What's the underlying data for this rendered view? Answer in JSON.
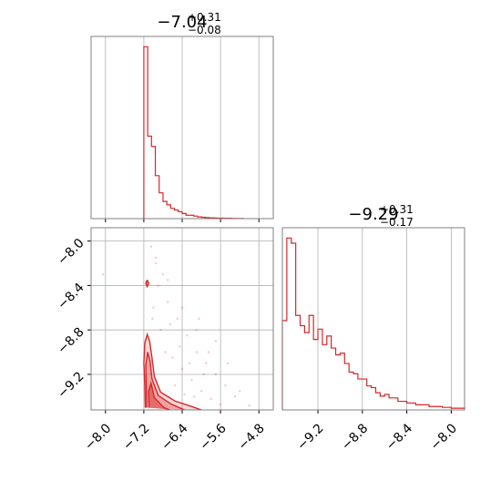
{
  "colors": {
    "series": "#d62728",
    "grid": "#b0b0b0",
    "frame": "#808080"
  },
  "chart_data": [
    {
      "type": "histogram",
      "panel": "top-left",
      "title": {
        "main": "−7.04",
        "sup": "+0.31",
        "sub": "−0.08"
      },
      "xlim": [
        -8.3,
        -4.5
      ],
      "xticks": [
        -8.0,
        -7.2,
        -6.4,
        -5.6,
        -4.8
      ],
      "bin_edges": [
        -7.2,
        -7.12,
        -7.04,
        -6.96,
        -6.88,
        -6.8,
        -6.72,
        -6.64,
        -6.56,
        -6.48,
        -6.4,
        -6.32,
        -6.24,
        -6.16,
        -6.08,
        -6.0,
        -5.92,
        -5.84,
        -5.76,
        -5.68,
        -5.6,
        -5.52,
        -5.44,
        -5.36,
        -5.28,
        -5.2,
        -5.12
      ],
      "counts": [
        1.0,
        0.48,
        0.42,
        0.25,
        0.15,
        0.1,
        0.08,
        0.06,
        0.05,
        0.04,
        0.03,
        0.02,
        0.02,
        0.015,
        0.01,
        0.008,
        0.006,
        0.005,
        0.004,
        0.003,
        0.003,
        0.002,
        0.002,
        0.001,
        0.001,
        0.001
      ]
    },
    {
      "type": "scatter-contour",
      "panel": "bottom-left",
      "xlim": [
        -8.3,
        -4.5
      ],
      "ylim": [
        -9.52,
        -7.88
      ],
      "xticks": [
        -8.0,
        -7.2,
        -6.4,
        -5.6,
        -4.8
      ],
      "yticks": [
        -8.0,
        -8.4,
        -8.8,
        -9.2
      ],
      "contours": [
        [
          [
            -7.17,
            -9.5
          ],
          [
            -7.18,
            -9.3
          ],
          [
            -7.2,
            -9.1
          ],
          [
            -7.18,
            -8.92
          ],
          [
            -7.13,
            -8.84
          ],
          [
            -7.08,
            -8.9
          ],
          [
            -7.03,
            -9.05
          ],
          [
            -6.98,
            -9.22
          ],
          [
            -6.85,
            -9.36
          ],
          [
            -6.55,
            -9.44
          ],
          [
            -6.2,
            -9.49
          ],
          [
            -6.0,
            -9.52
          ]
        ],
        [
          [
            -7.14,
            -9.5
          ],
          [
            -7.15,
            -9.3
          ],
          [
            -7.16,
            -9.12
          ],
          [
            -7.12,
            -9.0
          ],
          [
            -7.07,
            -9.08
          ],
          [
            -7.03,
            -9.24
          ],
          [
            -6.9,
            -9.39
          ],
          [
            -6.62,
            -9.47
          ],
          [
            -6.35,
            -9.52
          ]
        ],
        [
          [
            -7.09,
            -9.5
          ],
          [
            -7.1,
            -9.35
          ],
          [
            -7.05,
            -9.28
          ],
          [
            -6.98,
            -9.41
          ],
          [
            -6.78,
            -9.5
          ],
          [
            -6.65,
            -9.52
          ]
        ],
        [
          [
            -7.13,
            -8.35
          ],
          [
            -7.1,
            -8.38
          ],
          [
            -7.13,
            -8.41
          ],
          [
            -7.16,
            -8.38
          ],
          [
            -7.13,
            -8.35
          ]
        ]
      ],
      "scatter_points": [
        [
          -7.05,
          -8.05
        ],
        [
          -6.95,
          -8.15
        ],
        [
          -6.8,
          -8.3
        ],
        [
          -6.7,
          -8.55
        ],
        [
          -6.5,
          -8.7
        ],
        [
          -6.3,
          -8.85
        ],
        [
          -6.1,
          -9.0
        ],
        [
          -5.9,
          -9.1
        ],
        [
          -5.7,
          -9.2
        ],
        [
          -5.5,
          -9.3
        ],
        [
          -5.3,
          -9.4
        ],
        [
          -6.9,
          -8.4
        ],
        [
          -6.6,
          -9.05
        ],
        [
          -6.4,
          -9.15
        ],
        [
          -6.2,
          -9.25
        ],
        [
          -6.0,
          -9.35
        ],
        [
          -5.8,
          -9.42
        ],
        [
          -5.6,
          -9.47
        ],
        [
          -6.85,
          -8.8
        ],
        [
          -6.75,
          -9.0
        ],
        [
          -6.45,
          -8.95
        ],
        [
          -6.25,
          -9.1
        ],
        [
          -5.95,
          -9.2
        ],
        [
          -6.55,
          -9.3
        ],
        [
          -6.35,
          -9.38
        ],
        [
          -7.0,
          -8.6
        ],
        [
          -6.65,
          -8.75
        ],
        [
          -6.15,
          -9.4
        ],
        [
          -5.85,
          -9.0
        ],
        [
          -8.05,
          -8.3
        ],
        [
          -5.7,
          -8.9
        ],
        [
          -6.05,
          -8.7
        ],
        [
          -5.45,
          -9.1
        ],
        [
          -5.2,
          -9.35
        ],
        [
          -5.0,
          -9.48
        ],
        [
          -6.95,
          -8.2
        ],
        [
          -6.7,
          -8.35
        ],
        [
          -6.4,
          -8.6
        ],
        [
          -6.1,
          -8.8
        ],
        [
          -7.02,
          -8.7
        ]
      ]
    },
    {
      "type": "histogram",
      "panel": "bottom-right",
      "title": {
        "main": "−9.29",
        "sup": "+0.31",
        "sub": "−0.17"
      },
      "xlim": [
        -9.52,
        -7.88
      ],
      "xticks": [
        -9.2,
        -8.8,
        -8.4,
        -8.0
      ],
      "bin_edges": [
        -9.52,
        -9.48,
        -9.44,
        -9.4,
        -9.36,
        -9.32,
        -9.28,
        -9.24,
        -9.2,
        -9.16,
        -9.12,
        -9.08,
        -9.04,
        -9.0,
        -8.96,
        -8.92,
        -8.88,
        -8.84,
        -8.8,
        -8.76,
        -8.72,
        -8.68,
        -8.64,
        -8.6,
        -8.56,
        -8.52,
        -8.48,
        -8.44,
        -8.4,
        -8.36,
        -8.32,
        -8.28,
        -8.24,
        -8.2,
        -8.16,
        -8.12,
        -8.08,
        -8.04,
        -8.0,
        -7.96,
        -7.92,
        -7.88
      ],
      "counts": [
        0.52,
        1.0,
        0.97,
        0.55,
        0.49,
        0.45,
        0.55,
        0.41,
        0.47,
        0.38,
        0.43,
        0.36,
        0.32,
        0.33,
        0.27,
        0.22,
        0.21,
        0.18,
        0.18,
        0.14,
        0.13,
        0.1,
        0.08,
        0.09,
        0.07,
        0.07,
        0.05,
        0.05,
        0.04,
        0.04,
        0.03,
        0.03,
        0.03,
        0.02,
        0.02,
        0.02,
        0.015,
        0.015,
        0.01,
        0.01,
        0.01
      ]
    }
  ]
}
